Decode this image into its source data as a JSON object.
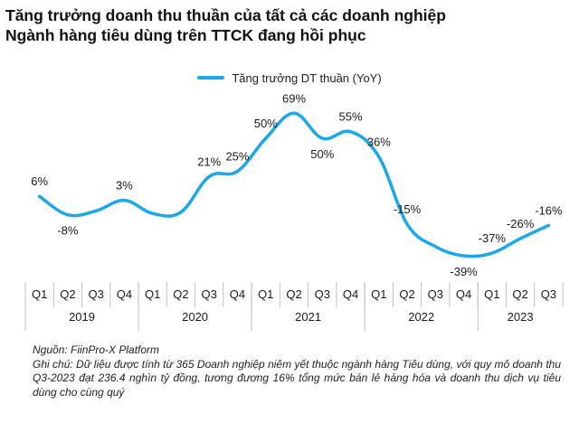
{
  "title_lines": [
    "Tăng trưởng doanh thu thuần của tất cả các doanh nghiệp",
    "Ngành hàng tiêu dùng trên TTCK đang hồi phục"
  ],
  "legend_label": "Tăng trưởng DT thuần (YoY)",
  "source": "Nguồn: FiinPro-X Platform",
  "note": "Ghi chú: Dữ liệu được tính từ 365 Doanh nghiệp niêm yết thuộc ngành hàng Tiêu dùng, với quy mô doanh thu Q3-2023 đạt 236.4 nghìn tỷ đồng, tương đương 16% tổng mức bán lẻ hàng hóa và doanh thu dịch vụ tiêu dùng cho cùng quý",
  "colors": {
    "line": "#1aa8e8",
    "grid": "#bfbfbf"
  },
  "chart_data": {
    "type": "line",
    "categories": [
      "Q1",
      "Q2",
      "Q3",
      "Q4",
      "Q1",
      "Q2",
      "Q3",
      "Q4",
      "Q1",
      "Q2",
      "Q3",
      "Q4",
      "Q1",
      "Q2",
      "Q3",
      "Q4",
      "Q1",
      "Q2",
      "Q3"
    ],
    "years": [
      {
        "label": "2019",
        "count": 4
      },
      {
        "label": "2020",
        "count": 4
      },
      {
        "label": "2021",
        "count": 4
      },
      {
        "label": "2022",
        "count": 4
      },
      {
        "label": "2023",
        "count": 3
      }
    ],
    "series": [
      {
        "name": "Tăng trưởng DT thuần (YoY)",
        "values": [
          6,
          -8,
          -5,
          3,
          -7,
          -6,
          21,
          25,
          50,
          69,
          50,
          55,
          36,
          -15,
          -32,
          -39,
          -37,
          -26,
          -16
        ],
        "labels": [
          "6%",
          "-8%",
          "",
          "3%",
          "",
          "",
          "21%",
          "25%",
          "50%",
          "69%",
          "50%",
          "55%",
          "36%",
          "-15%",
          "",
          "-39%",
          "-37%",
          "-26%",
          "-16%"
        ]
      }
    ],
    "ylim": [
      -45,
      75
    ],
    "smooth": true,
    "legend": "top-center"
  }
}
